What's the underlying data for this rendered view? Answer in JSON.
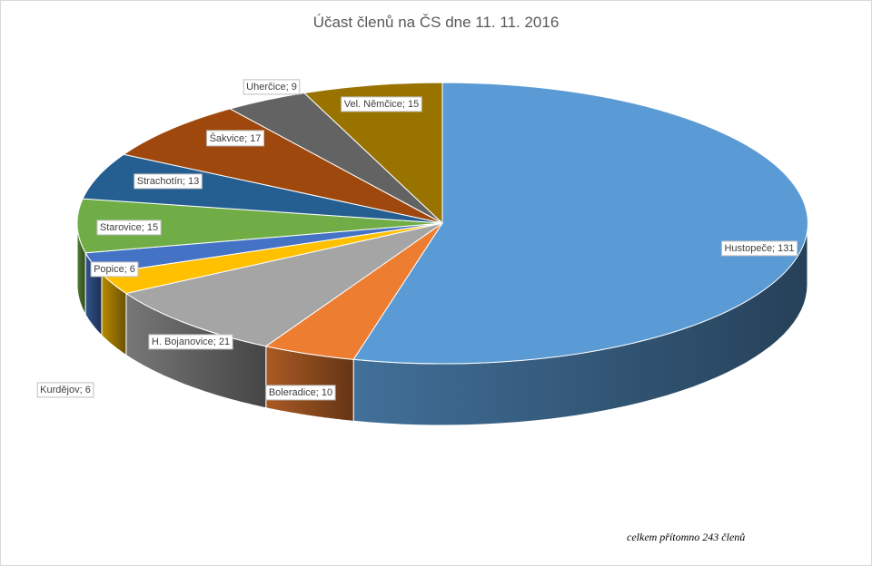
{
  "chart_data": {
    "type": "pie",
    "title": "Účast členů na ČS dne 11. 11. 2016",
    "slices": [
      {
        "label": "Hustopeče; 131",
        "value": 131,
        "color": "#5b9bd5"
      },
      {
        "label": "Boleradice; 10",
        "value": 10,
        "color": "#ed7d31"
      },
      {
        "label": "H. Bojanovice; 21",
        "value": 21,
        "color": "#a5a5a5"
      },
      {
        "label": "Kurdějov; 6",
        "value": 6,
        "color": "#ffc000"
      },
      {
        "label": "Popice; 6",
        "value": 6,
        "color": "#4472c4"
      },
      {
        "label": "Starovice; 15",
        "value": 15,
        "color": "#70ad47"
      },
      {
        "label": "Strachotín; 13",
        "value": 13,
        "color": "#255e91"
      },
      {
        "label": "Šakvice; 17",
        "value": 17,
        "color": "#9e480e"
      },
      {
        "label": "Uherčice; 9",
        "value": 9,
        "color": "#636363"
      },
      {
        "label": "Vel. Němčice; 15",
        "value": 15,
        "color": "#997300"
      }
    ],
    "note": "celkem přítomno 243 členů"
  }
}
